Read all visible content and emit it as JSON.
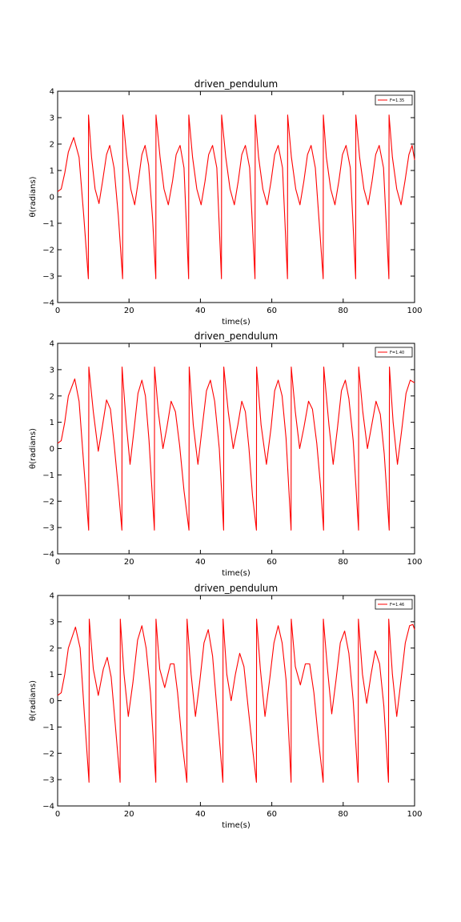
{
  "chart_data": [
    {
      "type": "line",
      "title": "driven_pendulum",
      "xlabel": "time(s)",
      "ylabel": "θ(radians)",
      "xlim": [
        0,
        100
      ],
      "ylim": [
        -4,
        4
      ],
      "xticks": [
        "0",
        "20",
        "40",
        "60",
        "80",
        "100"
      ],
      "yticks": [
        "−4",
        "−3",
        "−2",
        "−1",
        "0",
        "1",
        "2",
        "3",
        "4"
      ],
      "grid": false,
      "legend_position": "top-right",
      "series": [
        {
          "name": "F=1.35",
          "color": "#ff0000",
          "x": [
            0,
            1,
            2,
            3,
            4.5,
            6,
            7.3,
            8.6,
            8.65,
            9.5,
            10.5,
            11.6,
            12.6,
            13.7,
            14.6,
            15.8,
            17,
            18.2,
            18.25,
            19.3,
            20.5,
            21.6,
            22.6,
            23.6,
            24.5,
            25.5,
            26.6,
            27.5,
            27.55,
            28.7,
            29.8,
            31,
            32.2,
            33.2,
            34.3,
            35.4,
            36.7,
            36.75,
            37.8,
            39,
            40.2,
            41.3,
            42.3,
            43.4,
            44.6,
            45.9,
            45.95,
            47.1,
            48.3,
            49.5,
            50.6,
            51.6,
            52.6,
            53.8,
            55.3,
            55.35,
            56.3,
            57.5,
            58.7,
            59.8,
            60.8,
            61.8,
            63,
            64.4,
            64.45,
            65.5,
            66.7,
            67.9,
            69,
            70,
            71,
            72.2,
            74.4,
            74.45,
            75.3,
            76.5,
            77.7,
            78.8,
            79.8,
            80.8,
            82,
            83.5,
            83.55,
            84.6,
            85.8,
            87,
            88.1,
            89.1,
            90.1,
            91.3,
            92.8,
            92.85,
            93.8,
            95,
            96.2,
            97.3,
            98.4,
            99.3,
            100
          ],
          "y": [
            0.2,
            0.3,
            0.9,
            1.7,
            2.25,
            1.5,
            -0.7,
            -3.1,
            3.1,
            1.5,
            0.3,
            -0.25,
            0.6,
            1.6,
            1.95,
            1.1,
            -0.7,
            -3.1,
            3.1,
            1.6,
            0.3,
            -0.3,
            0.6,
            1.6,
            1.95,
            1.2,
            -0.8,
            -3.1,
            3.1,
            1.5,
            0.3,
            -0.3,
            0.6,
            1.6,
            1.95,
            1.1,
            -3.1,
            3.1,
            1.5,
            0.3,
            -0.3,
            0.6,
            1.6,
            1.95,
            1.1,
            -3.1,
            3.1,
            1.5,
            0.3,
            -0.3,
            0.6,
            1.6,
            1.95,
            1.1,
            -3.1,
            3.1,
            1.5,
            0.3,
            -0.3,
            0.6,
            1.6,
            1.95,
            1.1,
            -3.1,
            3.1,
            1.5,
            0.3,
            -0.3,
            0.6,
            1.6,
            1.95,
            1.1,
            -3.1,
            3.1,
            1.5,
            0.3,
            -0.3,
            0.6,
            1.6,
            1.95,
            1.1,
            -3.1,
            3.1,
            1.5,
            0.3,
            -0.3,
            0.6,
            1.6,
            1.95,
            1.1,
            -3.1,
            3.1,
            1.5,
            0.3,
            -0.3,
            0.6,
            1.6,
            1.95,
            1.4
          ]
        }
      ]
    },
    {
      "type": "line",
      "title": "driven_pendulum",
      "xlabel": "time(s)",
      "ylabel": "θ(radians)",
      "xlim": [
        0,
        100
      ],
      "ylim": [
        -4,
        4
      ],
      "xticks": [
        "0",
        "20",
        "40",
        "60",
        "80",
        "100"
      ],
      "yticks": [
        "−4",
        "−3",
        "−2",
        "−1",
        "0",
        "1",
        "2",
        "3",
        "4"
      ],
      "grid": false,
      "legend_position": "top-right",
      "series": [
        {
          "name": "F=1.40",
          "color": "#ff0000",
          "x": [
            0,
            1,
            2,
            3,
            4.8,
            6,
            7.3,
            8.7,
            8.75,
            10,
            11.4,
            12.6,
            13.7,
            14.8,
            15.8,
            17,
            18,
            18.05,
            19.2,
            20.3,
            21.4,
            22.5,
            23.6,
            24.6,
            25.6,
            27.1,
            27.15,
            28.2,
            29.5,
            30.6,
            31.8,
            33,
            34.2,
            35.4,
            36.8,
            36.85,
            38,
            39.3,
            40.5,
            41.7,
            42.8,
            44,
            45.3,
            46.5,
            46.55,
            47.8,
            49.2,
            50.5,
            51.6,
            52.6,
            53.6,
            54.6,
            55.7,
            55.75,
            57,
            58.5,
            59.8,
            60.8,
            61.8,
            62.9,
            64,
            65.4,
            65.45,
            66.6,
            67.8,
            69,
            70.3,
            71.4,
            72.6,
            73.7,
            74.5,
            74.55,
            76,
            77.2,
            78.4,
            79.5,
            80.6,
            81.6,
            82.8,
            84.3,
            84.35,
            85.5,
            86.8,
            88,
            89.2,
            90.4,
            91.5,
            92.9,
            92.95,
            94,
            95.2,
            96.4,
            97.6,
            98.8,
            100
          ],
          "y": [
            0.2,
            0.3,
            1.0,
            2.0,
            2.65,
            1.8,
            -0.6,
            -3.1,
            3.1,
            1.4,
            -0.1,
            0.9,
            1.85,
            1.5,
            0.2,
            -1.5,
            -3.1,
            3.1,
            1.0,
            -0.6,
            0.7,
            2.1,
            2.6,
            2.0,
            0.3,
            -3.1,
            3.1,
            1.4,
            0.0,
            0.8,
            1.8,
            1.4,
            0.1,
            -1.6,
            -3.1,
            3.1,
            0.9,
            -0.6,
            0.8,
            2.2,
            2.6,
            1.8,
            0.0,
            -3.1,
            3.1,
            1.4,
            0.0,
            0.9,
            1.8,
            1.4,
            0.0,
            -1.8,
            -3.1,
            3.1,
            0.9,
            -0.6,
            0.8,
            2.2,
            2.6,
            2.0,
            0.4,
            -3.1,
            3.1,
            1.4,
            0.0,
            0.8,
            1.8,
            1.5,
            0.2,
            -1.5,
            -3.1,
            3.1,
            0.9,
            -0.6,
            0.8,
            2.2,
            2.6,
            1.9,
            0.3,
            -3.1,
            3.1,
            1.4,
            0.0,
            0.9,
            1.8,
            1.3,
            -0.2,
            -3.1,
            3.1,
            1.0,
            -0.6,
            0.7,
            2.1,
            2.6,
            2.5
          ]
        }
      ]
    },
    {
      "type": "line",
      "title": "driven_pendulum",
      "xlabel": "time(s)",
      "ylabel": "θ(radians)",
      "xlim": [
        0,
        100
      ],
      "ylim": [
        -4,
        4
      ],
      "xticks": [
        "0",
        "20",
        "40",
        "60",
        "80",
        "100"
      ],
      "yticks": [
        "−4",
        "−3",
        "−2",
        "−1",
        "0",
        "1",
        "2",
        "3",
        "4"
      ],
      "grid": false,
      "legend_position": "top-right",
      "series": [
        {
          "name": "F=1.46",
          "color": "#ff0000",
          "x": [
            0,
            1,
            2,
            3,
            5,
            6.3,
            7.5,
            8.8,
            8.85,
            10,
            11.4,
            12.8,
            13.9,
            15,
            16.2,
            17.5,
            17.55,
            18.6,
            19.8,
            21.1,
            22.4,
            23.6,
            24.8,
            26,
            27.5,
            27.55,
            28.6,
            30,
            31.6,
            32.6,
            33.6,
            34.8,
            36.2,
            36.25,
            37.4,
            38.6,
            39.8,
            41,
            42.2,
            43.4,
            44.8,
            46.3,
            46.35,
            47.4,
            48.6,
            49.8,
            51,
            52.2,
            53.4,
            54.6,
            55.7,
            55.75,
            56.8,
            58.1,
            59.4,
            60.6,
            61.8,
            62.9,
            64,
            65.4,
            65.45,
            66.6,
            68,
            69.4,
            70.6,
            71.8,
            73,
            74.4,
            74.45,
            75.6,
            76.8,
            78,
            79.2,
            80.4,
            81.6,
            82.8,
            84.2,
            84.25,
            85.4,
            86.6,
            87.8,
            89,
            90.2,
            91.4,
            92.7,
            92.75,
            93.8,
            95,
            96.2,
            97.4,
            98.6,
            99.5,
            100
          ],
          "y": [
            0.2,
            0.3,
            1.0,
            2.0,
            2.8,
            2.0,
            -0.5,
            -3.1,
            3.1,
            1.2,
            0.2,
            1.2,
            1.65,
            0.9,
            -1.0,
            -3.1,
            3.1,
            1.0,
            -0.6,
            0.7,
            2.3,
            2.85,
            2.0,
            0.3,
            -3.1,
            3.1,
            1.2,
            0.5,
            1.4,
            1.4,
            0.3,
            -1.5,
            -3.1,
            3.1,
            1.0,
            -0.6,
            0.7,
            2.2,
            2.7,
            1.7,
            -0.6,
            -3.1,
            3.1,
            1.0,
            0.0,
            1.0,
            1.8,
            1.3,
            -0.3,
            -1.8,
            -3.1,
            3.1,
            1.2,
            -0.6,
            0.8,
            2.2,
            2.85,
            2.2,
            0.8,
            -3.1,
            3.1,
            1.3,
            0.6,
            1.4,
            1.4,
            0.3,
            -1.4,
            -3.1,
            3.1,
            1.2,
            -0.5,
            0.8,
            2.2,
            2.65,
            1.8,
            0.0,
            -3.1,
            3.1,
            1.0,
            -0.1,
            1.0,
            1.9,
            1.4,
            -0.2,
            -3.1,
            3.1,
            1.0,
            -0.6,
            0.8,
            2.2,
            2.85,
            2.9,
            2.7
          ]
        }
      ]
    }
  ]
}
